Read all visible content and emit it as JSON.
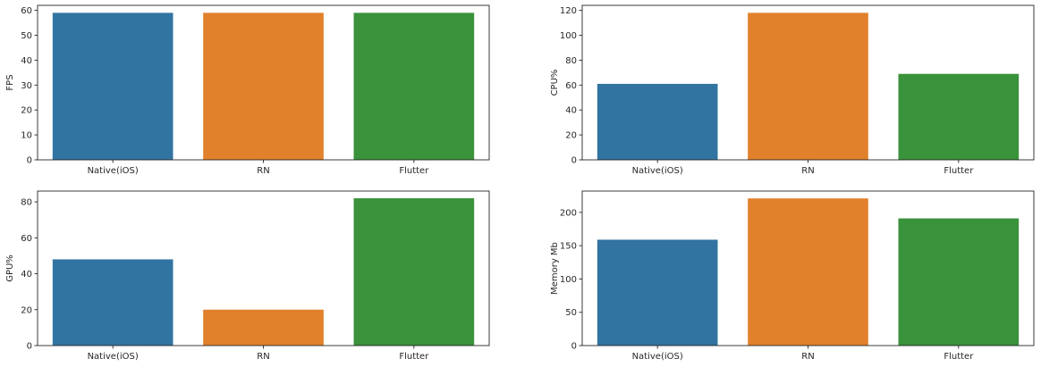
{
  "chart_data": [
    {
      "type": "bar",
      "categories": [
        "Native(iOS)",
        "RN",
        "Flutter"
      ],
      "values": [
        59,
        59,
        59
      ],
      "xlabel": "",
      "ylabel": "FPS",
      "ylim": [
        0,
        62
      ],
      "yticks": [
        0,
        10,
        20,
        30,
        40,
        50,
        60
      ],
      "colors": [
        "#3274a1",
        "#e1812c",
        "#3a923a"
      ]
    },
    {
      "type": "bar",
      "categories": [
        "Native(iOS)",
        "RN",
        "Flutter"
      ],
      "values": [
        61,
        118,
        69
      ],
      "xlabel": "",
      "ylabel": "CPU%",
      "ylim": [
        0,
        124
      ],
      "yticks": [
        0,
        20,
        40,
        60,
        80,
        100,
        120
      ],
      "colors": [
        "#3274a1",
        "#e1812c",
        "#3a923a"
      ]
    },
    {
      "type": "bar",
      "categories": [
        "Native(iOS)",
        "RN",
        "Flutter"
      ],
      "values": [
        48,
        20,
        82
      ],
      "xlabel": "",
      "ylabel": "GPU%",
      "ylim": [
        0,
        86
      ],
      "yticks": [
        0,
        20,
        40,
        60,
        80
      ],
      "colors": [
        "#3274a1",
        "#e1812c",
        "#3a923a"
      ]
    },
    {
      "type": "bar",
      "categories": [
        "Native(iOS)",
        "RN",
        "Flutter"
      ],
      "values": [
        159,
        221,
        191
      ],
      "xlabel": "",
      "ylabel": "Memory Mb",
      "ylim": [
        0,
        232
      ],
      "yticks": [
        0,
        50,
        100,
        150,
        200
      ],
      "colors": [
        "#3274a1",
        "#e1812c",
        "#3a923a"
      ]
    }
  ]
}
